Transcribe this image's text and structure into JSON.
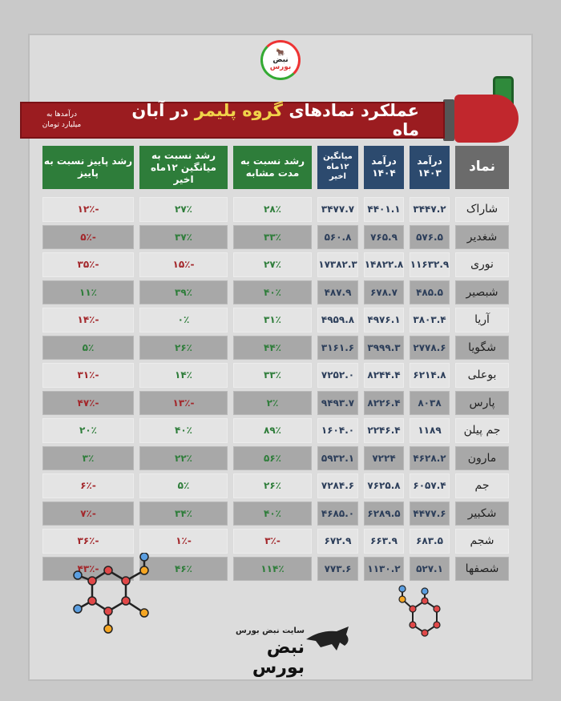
{
  "logo_text": "نبض بورس",
  "banner": {
    "title_pre": "عملکرد نمادهای",
    "title_hl": "گروه پلیمر",
    "title_post": "در آبان ماه",
    "unit_line1": "درآمدها به",
    "unit_line2": "میلیارد تومان"
  },
  "colors": {
    "banner": "#9b1c20",
    "header_blue": "#2c4a6e",
    "header_green": "#2e7d3a",
    "positive": "#2e7d3a",
    "negative": "#a3262a"
  },
  "headers": [
    "نماد",
    "درآمد ۱۴۰۳",
    "درآمد ۱۴۰۴",
    "میانگین ۱۲ماه اخیر",
    "رشد نسبت به مدت مشابه",
    "رشد نسبت به میانگین ۱۲ماه اخیر",
    "رشد پاییز نسبت به پاییز"
  ],
  "rows": [
    [
      "شاراک",
      "۳۴۴۷.۲",
      "۴۴۰۱.۱",
      "۳۴۷۷.۷",
      "۲۸٪",
      "۲۷٪",
      "-۱۲٪"
    ],
    [
      "شغدیر",
      "۵۷۶.۵",
      "۷۶۵.۹",
      "۵۶۰.۸",
      "۳۳٪",
      "۳۷٪",
      "-۵٪"
    ],
    [
      "نوری",
      "۱۱۶۳۲.۹",
      "۱۴۸۲۲.۸",
      "۱۷۳۸۲.۳",
      "۲۷٪",
      "-۱۵٪",
      "-۳۵٪"
    ],
    [
      "شبصیر",
      "۴۸۵.۵",
      "۶۷۸.۷",
      "۴۸۷.۹",
      "۴۰٪",
      "۳۹٪",
      "۱۱٪"
    ],
    [
      "آریا",
      "۳۸۰۳.۴",
      "۴۹۷۶.۱",
      "۴۹۵۹.۸",
      "۳۱٪",
      "۰٪",
      "-۱۴٪"
    ],
    [
      "شگویا",
      "۲۷۷۸.۶",
      "۳۹۹۹.۳",
      "۳۱۶۱.۶",
      "۴۴٪",
      "۲۶٪",
      "۵٪"
    ],
    [
      "بوعلی",
      "۶۲۱۴.۸",
      "۸۲۴۴.۴",
      "۷۲۵۲.۰",
      "۳۳٪",
      "۱۴٪",
      "-۳۱٪"
    ],
    [
      "پارس",
      "۸۰۳۸",
      "۸۲۲۶.۴",
      "۹۴۹۳.۷",
      "۲٪",
      "-۱۳٪",
      "-۴۷٪"
    ],
    [
      "جم پیلن",
      "۱۱۸۹",
      "۲۲۴۶.۴",
      "۱۶۰۴.۰",
      "۸۹٪",
      "۴۰٪",
      "۲۰٪"
    ],
    [
      "مارون",
      "۴۶۲۸.۲",
      "۷۲۲۴",
      "۵۹۳۲.۱",
      "۵۶٪",
      "۲۲٪",
      "۳٪"
    ],
    [
      "جم",
      "۶۰۵۷.۴",
      "۷۶۲۵.۸",
      "۷۲۸۴.۶",
      "۲۶٪",
      "۵٪",
      "-۶٪"
    ],
    [
      "شکبیر",
      "۴۴۷۷.۶",
      "۶۲۸۹.۵",
      "۴۶۸۵.۰",
      "۴۰٪",
      "۳۴٪",
      "-۷٪"
    ],
    [
      "شجم",
      "۶۸۳.۵",
      "۶۶۳.۹",
      "۶۷۲.۹",
      "-۳٪",
      "-۱٪",
      "-۳۶٪"
    ],
    [
      "شصفها",
      "۵۲۷.۱",
      "۱۱۳۰.۲",
      "۷۷۳.۶",
      "۱۱۴٪",
      "۴۶٪",
      "-۴۳٪"
    ]
  ],
  "footer": {
    "site": "سایت نبض بورس",
    "brand": "نبض بورس"
  }
}
